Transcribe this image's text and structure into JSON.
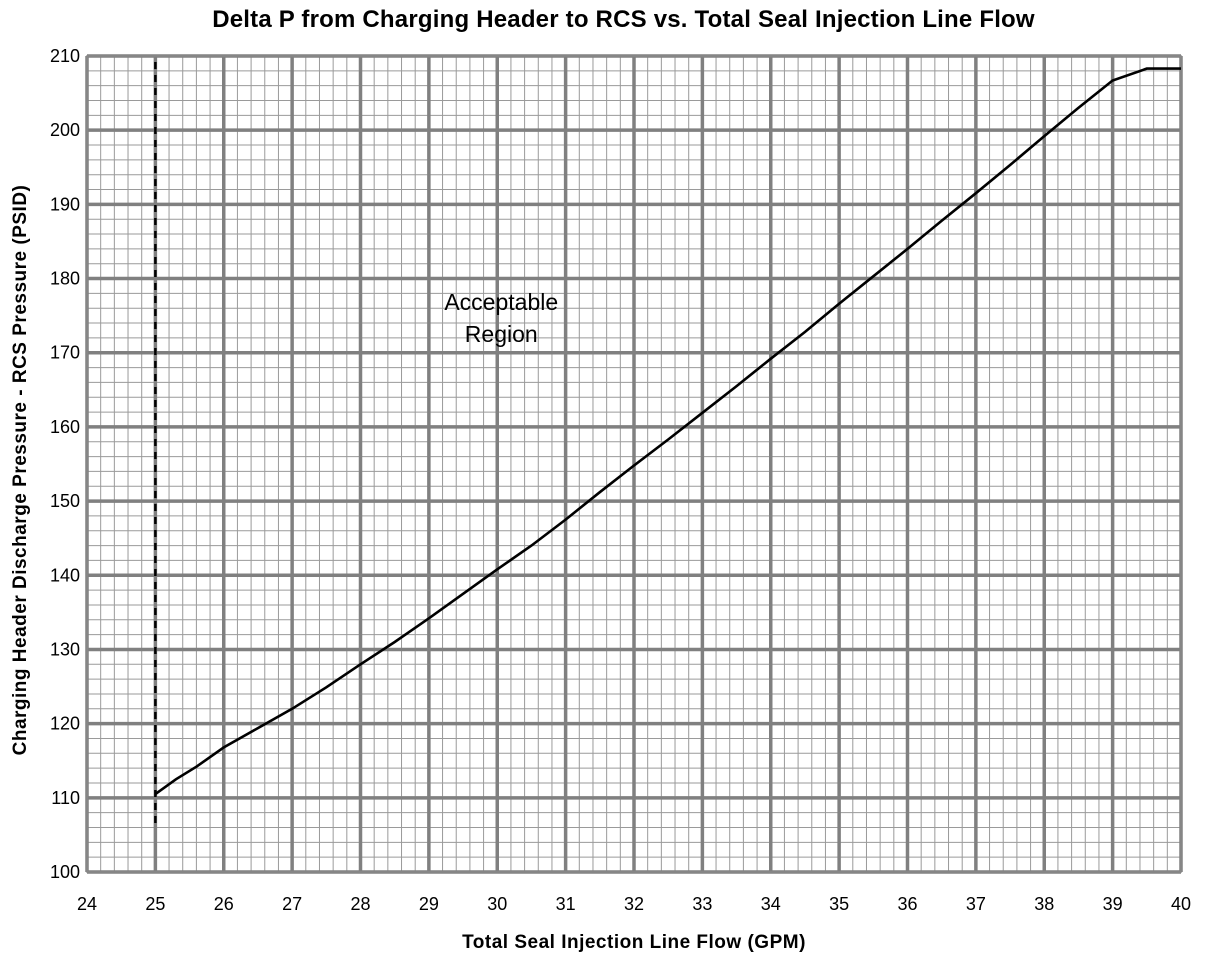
{
  "chart_data": {
    "type": "line",
    "title": "Delta P from Charging Header to RCS vs. Total Seal Injection Line Flow",
    "xlabel": "Total Seal Injection Line Flow (GPM)",
    "ylabel": "Charging Header Discharge Pressure - RCS Pressure (PSID)",
    "xlim": [
      24,
      40
    ],
    "ylim": [
      100,
      210
    ],
    "x_ticks": [
      24,
      25,
      26,
      27,
      28,
      29,
      30,
      31,
      32,
      33,
      34,
      35,
      36,
      37,
      38,
      39,
      40
    ],
    "y_ticks": [
      100,
      110,
      120,
      130,
      140,
      150,
      160,
      170,
      180,
      190,
      200,
      210
    ],
    "grid": true,
    "legend": "none",
    "series": [
      {
        "x": [
          25,
          25.3,
          25.6,
          26,
          26.5,
          27,
          27.5,
          28,
          28.5,
          29,
          29.5,
          30,
          30.5,
          31,
          31.5,
          32,
          32.5,
          33,
          33.5,
          34,
          34.5,
          35,
          35.5,
          36,
          36.5,
          37,
          37.5,
          38,
          38.5,
          39,
          39.5,
          40
        ],
        "y": [
          110.5,
          112.5,
          114.2,
          116.8,
          119.4,
          122.0,
          124.9,
          128.0,
          131.0,
          134.2,
          137.5,
          140.8,
          144.0,
          147.5,
          151.2,
          154.8,
          158.3,
          161.9,
          165.5,
          169.2,
          172.8,
          176.6,
          180.3,
          184.0,
          187.8,
          191.5,
          195.3,
          199.2,
          203.0,
          206.7,
          210.5,
          208.3
        ]
      }
    ],
    "limit_line": {
      "x": 25,
      "style": "dashed"
    },
    "annotations": [
      {
        "text": [
          "Acceptable",
          "Region"
        ],
        "x": 30,
        "y": 176
      }
    ]
  }
}
